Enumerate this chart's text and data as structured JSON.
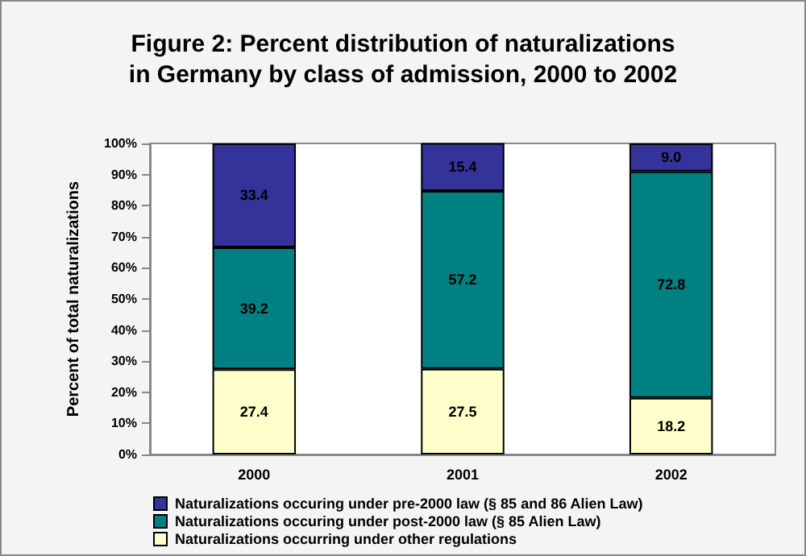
{
  "chart_data": {
    "type": "bar",
    "title": "Figure 2: Percent distribution of naturalizations\nin Germany by class of admission, 2000 to 2002",
    "ylabel": "Percent of total naturalizations",
    "categories": [
      "2000",
      "2001",
      "2002"
    ],
    "stacked": true,
    "grid": false,
    "legend": "bottom",
    "ylim": [
      0,
      100
    ],
    "yticks": [
      {
        "value": 0,
        "label": "0%"
      },
      {
        "value": 10,
        "label": "10%"
      },
      {
        "value": 20,
        "label": "20%"
      },
      {
        "value": 30,
        "label": "30%"
      },
      {
        "value": 40,
        "label": "40%"
      },
      {
        "value": 50,
        "label": "50%"
      },
      {
        "value": 60,
        "label": "60%"
      },
      {
        "value": 70,
        "label": "70%"
      },
      {
        "value": 80,
        "label": "80%"
      },
      {
        "value": 90,
        "label": "90%"
      },
      {
        "value": 100,
        "label": "100%"
      }
    ],
    "series": [
      {
        "name": "Naturalizations occurring under other regulations",
        "color": "#ffffcc",
        "values": [
          27.4,
          27.5,
          18.2
        ],
        "value_labels": [
          "27.4",
          "27.5",
          "18.2"
        ]
      },
      {
        "name": "Naturalizations occuring under post-2000 law (§ 85 Alien Law)",
        "color": "#008080",
        "values": [
          39.2,
          57.2,
          72.8
        ],
        "value_labels": [
          "39.2",
          "57.2",
          "72.8"
        ]
      },
      {
        "name": "Naturalizations occuring under pre-2000 law (§ 85 and 86 Alien Law)",
        "color": "#333399",
        "values": [
          33.4,
          15.4,
          9.0
        ],
        "value_labels": [
          "33.4",
          "15.4",
          "9.0"
        ]
      }
    ]
  }
}
